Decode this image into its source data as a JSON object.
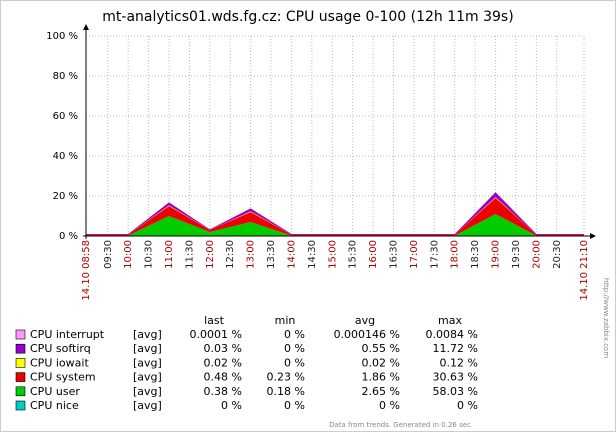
{
  "chart_data": {
    "type": "area",
    "stacked": true,
    "title": "mt-analytics01.wds.fg.cz: CPU usage 0-100  (12h 11m 39s)",
    "x": [
      "08:58",
      "10:00",
      "11:00",
      "12:00",
      "13:00",
      "14:00",
      "18:00",
      "19:00",
      "20:00",
      "21:10"
    ],
    "xlim": [
      "08:58",
      "21:10"
    ],
    "xticks": [
      {
        "value": "08:58",
        "label": "14.10 08:58"
      },
      "09:30",
      "10:00",
      "10:30",
      "11:00",
      "11:30",
      "12:00",
      "12:30",
      "13:00",
      "13:30",
      "14:00",
      "14:30",
      "15:00",
      "15:30",
      "16:00",
      "16:30",
      "17:00",
      "17:30",
      "18:00",
      "18:30",
      "19:00",
      "19:30",
      "20:00",
      "20:30",
      {
        "value": "21:10",
        "label": "14.10 21:10"
      }
    ],
    "ylim": [
      0,
      100
    ],
    "yticks": [
      {
        "value": 0,
        "label": "0 %"
      },
      {
        "value": 20,
        "label": "20 %"
      },
      {
        "value": 40,
        "label": "40 %"
      },
      {
        "value": 60,
        "label": "60 %"
      },
      {
        "value": 80,
        "label": "80 %"
      },
      {
        "value": 100,
        "label": "100 %"
      }
    ],
    "grid": true,
    "legend_columns": [
      "last",
      "min",
      "avg",
      "max"
    ],
    "series": [
      {
        "name": "CPU interrupt",
        "color": "#ff99ff",
        "values": [
          0,
          0,
          0.01,
          0,
          0.01,
          0,
          0,
          0.01,
          0,
          0
        ],
        "stats": [
          "[avg]",
          "0.0001 %",
          "0 %",
          "0.000146 %",
          "0.0084 %"
        ]
      },
      {
        "name": "CPU softirq",
        "color": "#9900cc",
        "values": [
          0.3,
          0.3,
          1.5,
          0.3,
          1.5,
          0.3,
          0.3,
          2.5,
          0.3,
          0.3
        ],
        "stats": [
          "[avg]",
          "0.03 %",
          "0 %",
          "0.55 %",
          "11.72 %"
        ]
      },
      {
        "name": "CPU iowait",
        "color": "#ffff00",
        "values": [
          0,
          0,
          0.3,
          0,
          0.3,
          0,
          0,
          0.4,
          0,
          0
        ],
        "stats": [
          "[avg]",
          "0.02 %",
          "0 %",
          "0.02 %",
          "0.12 %"
        ]
      },
      {
        "name": "CPU system",
        "color": "#ee0000",
        "values": [
          0.5,
          0.5,
          5,
          1,
          5,
          0.5,
          0.5,
          8,
          0.5,
          0.5
        ],
        "stats": [
          "[avg]",
          "0.48 %",
          "0.23 %",
          "1.86 %",
          "30.63 %"
        ]
      },
      {
        "name": "CPU user",
        "color": "#00cc00",
        "values": [
          0.2,
          0.2,
          10,
          2,
          7,
          0.2,
          0.2,
          11,
          0.2,
          0.2
        ],
        "stats": [
          "[avg]",
          "0.38 %",
          "0.18 %",
          "2.65 %",
          "58.03 %"
        ]
      },
      {
        "name": "CPU nice",
        "color": "#00cccc",
        "values": [
          0,
          0,
          0,
          0,
          0,
          0,
          0,
          0,
          0,
          0
        ],
        "stats": [
          "[avg]",
          "0 %",
          "0 %",
          "0 %",
          "0 %"
        ]
      }
    ],
    "footer": "Data from trends. Generated in 0.26 sec",
    "side_note": "http://www.zabbix.com"
  }
}
